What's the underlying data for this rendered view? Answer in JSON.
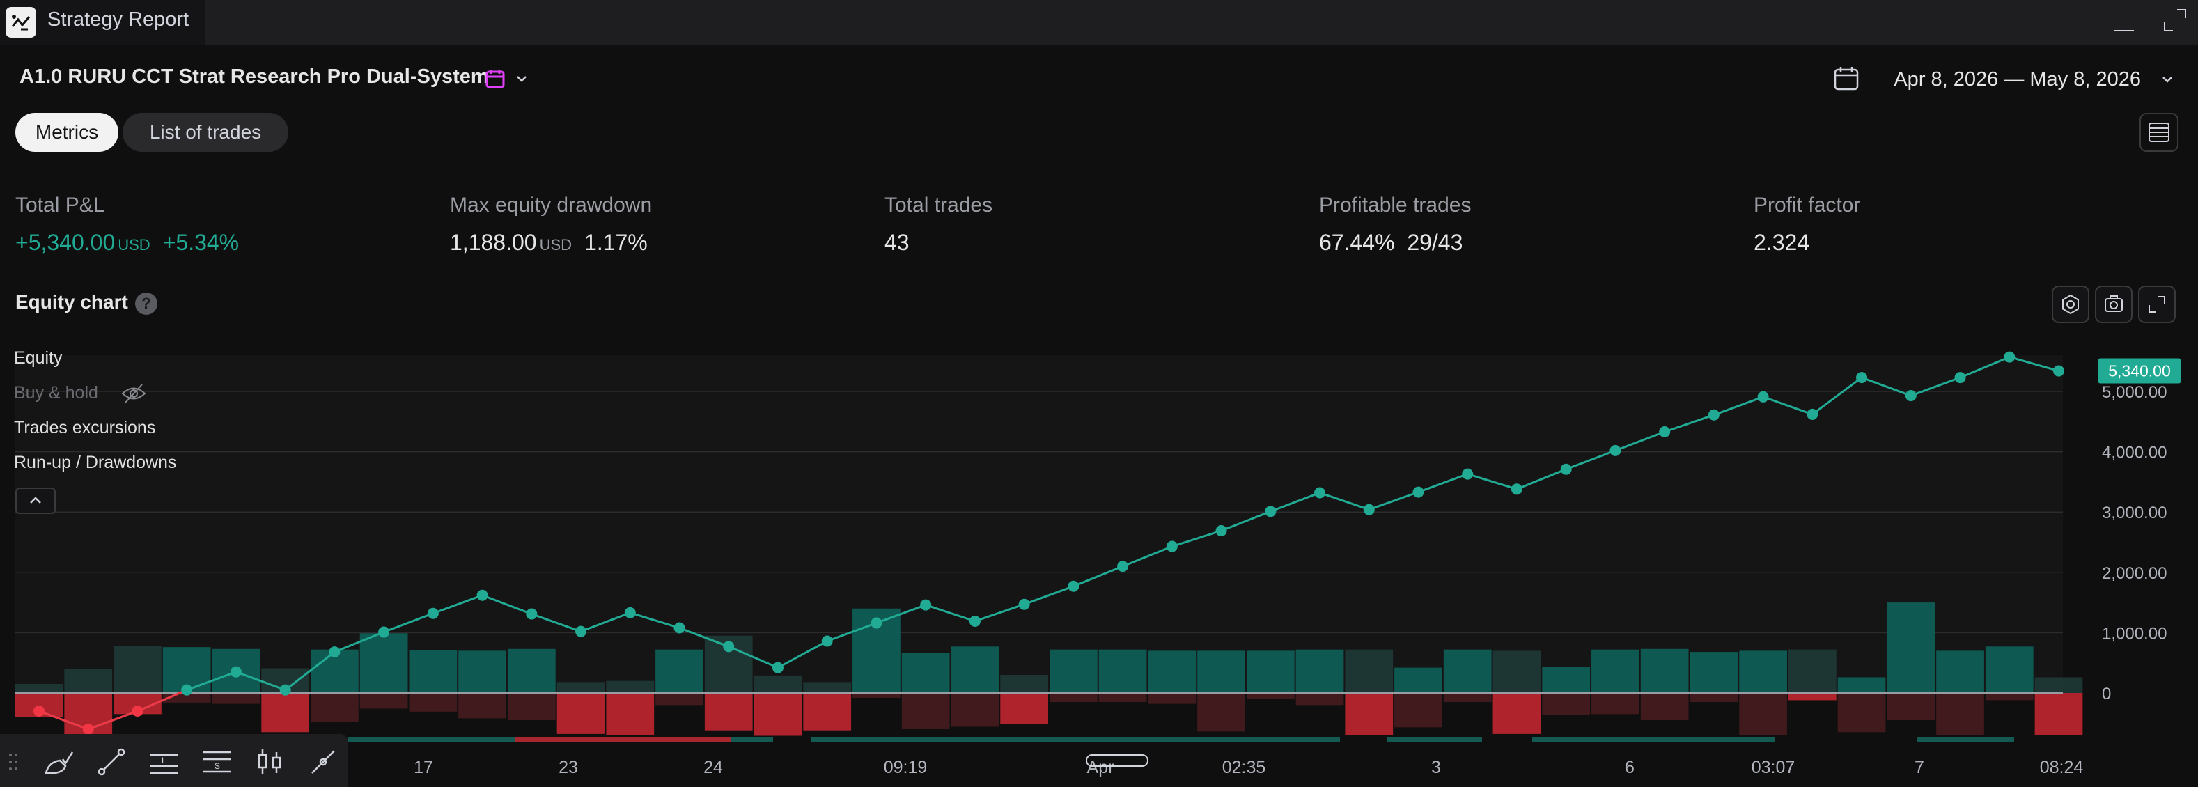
{
  "window": {
    "title": "Strategy Report"
  },
  "header": {
    "strategy_name": "A1.0 RURU CCT Strat Research Pro Dual-System",
    "date_range": "Apr 8, 2026 — May 8, 2026"
  },
  "tabs": [
    {
      "label": "Metrics",
      "active": true
    },
    {
      "label": "List of trades",
      "active": false
    }
  ],
  "metrics": {
    "total_pnl": {
      "label": "Total P&L",
      "value": "+5,340.00",
      "unit": "USD",
      "percent": "+5.34%"
    },
    "max_drawdown": {
      "label": "Max equity drawdown",
      "value": "1,188.00",
      "unit": "USD",
      "percent": "1.17%"
    },
    "total_trades": {
      "label": "Total trades",
      "value": "43"
    },
    "profitable_trades": {
      "label": "Profitable trades",
      "value": "67.44%",
      "ratio": "29/43"
    },
    "profit_factor": {
      "label": "Profit factor",
      "value": "2.324"
    }
  },
  "equity_chart": {
    "title": "Equity chart",
    "help": "?",
    "legend": {
      "equity": "Equity",
      "buy_hold": "Buy & hold",
      "trades_excursions": "Trades excursions",
      "runup_drawdowns": "Run-up / Drawdowns"
    }
  },
  "colors": {
    "accent_green": "#22ab94",
    "loss_red": "#f23645",
    "background": "#0f0f0f",
    "badge_magenta": "#e040fb"
  },
  "icons": [
    "app-logo-icon",
    "calendar-icon",
    "chevron-down-icon",
    "menu-lines-icon",
    "settings-icon",
    "camera-icon",
    "fullscreen-icon",
    "eye-off-icon",
    "chevron-up-icon",
    "minimize-icon",
    "maximize-icon"
  ],
  "chart_data": {
    "type": "line",
    "y_ticks": [
      "5,000.00",
      "4,000.00",
      "3,000.00",
      "2,000.00",
      "1,000.00",
      "0"
    ],
    "x_ticks": [
      "17",
      "23",
      "24",
      "09:19",
      "Apr",
      "02:35",
      "3",
      "6",
      "03:07",
      "7",
      "08:24"
    ],
    "last_value_label": "5,340.00",
    "ylim": [
      -700,
      5700
    ],
    "series": [
      {
        "name": "Equity",
        "values": [
          -300,
          -600,
          -300,
          50,
          350,
          50,
          680,
          1010,
          1320,
          1620,
          1310,
          1020,
          1330,
          1080,
          770,
          420,
          860,
          1160,
          1460,
          1190,
          1470,
          1770,
          2100,
          2430,
          2690,
          3010,
          3320,
          3040,
          3330,
          3630,
          3380,
          3710,
          4020,
          4330,
          4610,
          4910,
          4620,
          5230,
          4930,
          5230,
          5570,
          5340
        ]
      }
    ],
    "excursions": {
      "runup": [
        150,
        400,
        780,
        760,
        730,
        410,
        720,
        990,
        710,
        700,
        730,
        180,
        200,
        720,
        950,
        290,
        180,
        1400,
        660,
        770,
        300,
        720,
        720,
        700,
        700,
        700,
        720,
        720,
        420,
        720,
        700,
        430,
        720,
        730,
        680,
        700,
        720,
        260,
        1500,
        700,
        770,
        260
      ],
      "drawdown": [
        -400,
        -700,
        -350,
        -160,
        -180,
        -650,
        -480,
        -260,
        -310,
        -420,
        -450,
        -680,
        -700,
        -200,
        -620,
        -710,
        -620,
        -80,
        -600,
        -560,
        -520,
        -150,
        -150,
        -180,
        -640,
        -100,
        -200,
        -700,
        -570,
        -150,
        -680,
        -370,
        -350,
        -450,
        -150,
        -700,
        -120,
        -650,
        -450,
        -700,
        -120,
        -700
      ],
      "is_loss": [
        true,
        true,
        true,
        false,
        false,
        true,
        false,
        false,
        false,
        false,
        false,
        true,
        true,
        false,
        true,
        true,
        true,
        false,
        false,
        false,
        true,
        false,
        false,
        false,
        false,
        false,
        false,
        true,
        false,
        false,
        true,
        false,
        false,
        false,
        false,
        false,
        true,
        false,
        false,
        false,
        false,
        true
      ]
    },
    "grid": true,
    "legend_placement": "top-left"
  }
}
